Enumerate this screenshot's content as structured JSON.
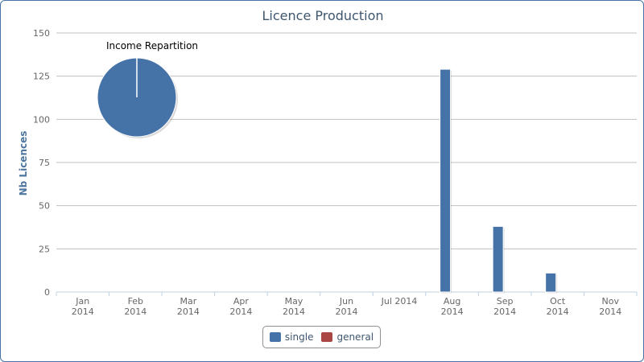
{
  "chart_data": {
    "type": "bar",
    "title": "Licence Production",
    "xlabel": "",
    "ylabel": "Nb Licences",
    "ylim": [
      0,
      150
    ],
    "yticks": [
      0,
      25,
      50,
      75,
      100,
      125,
      150
    ],
    "grid": true,
    "categories": [
      [
        "Jan",
        "2014"
      ],
      [
        "Feb",
        "2014"
      ],
      [
        "Mar",
        "2014"
      ],
      [
        "Apr",
        "2014"
      ],
      [
        "May",
        "2014"
      ],
      [
        "Jun",
        "2014"
      ],
      [
        "Jul 2014"
      ],
      [
        "Aug",
        "2014"
      ],
      [
        "Sep",
        "2014"
      ],
      [
        "Oct",
        "2014"
      ],
      [
        "Nov",
        "2014"
      ]
    ],
    "series": [
      {
        "name": "single",
        "color": "#4572a7",
        "values": [
          0,
          0,
          0,
          0,
          0,
          0,
          0,
          129,
          38,
          11,
          0
        ]
      },
      {
        "name": "general",
        "color": "#aa4643",
        "values": [
          0,
          0,
          0,
          0,
          0,
          0,
          0,
          0,
          0,
          0,
          0
        ]
      }
    ],
    "legend_placement": "bottom-center",
    "inset_pie": {
      "title": "Income Repartition",
      "slices": [
        {
          "name": "single",
          "value": 100,
          "color": "#4572a7"
        },
        {
          "name": "general",
          "value": 0,
          "color": "#aa4643"
        }
      ]
    }
  }
}
